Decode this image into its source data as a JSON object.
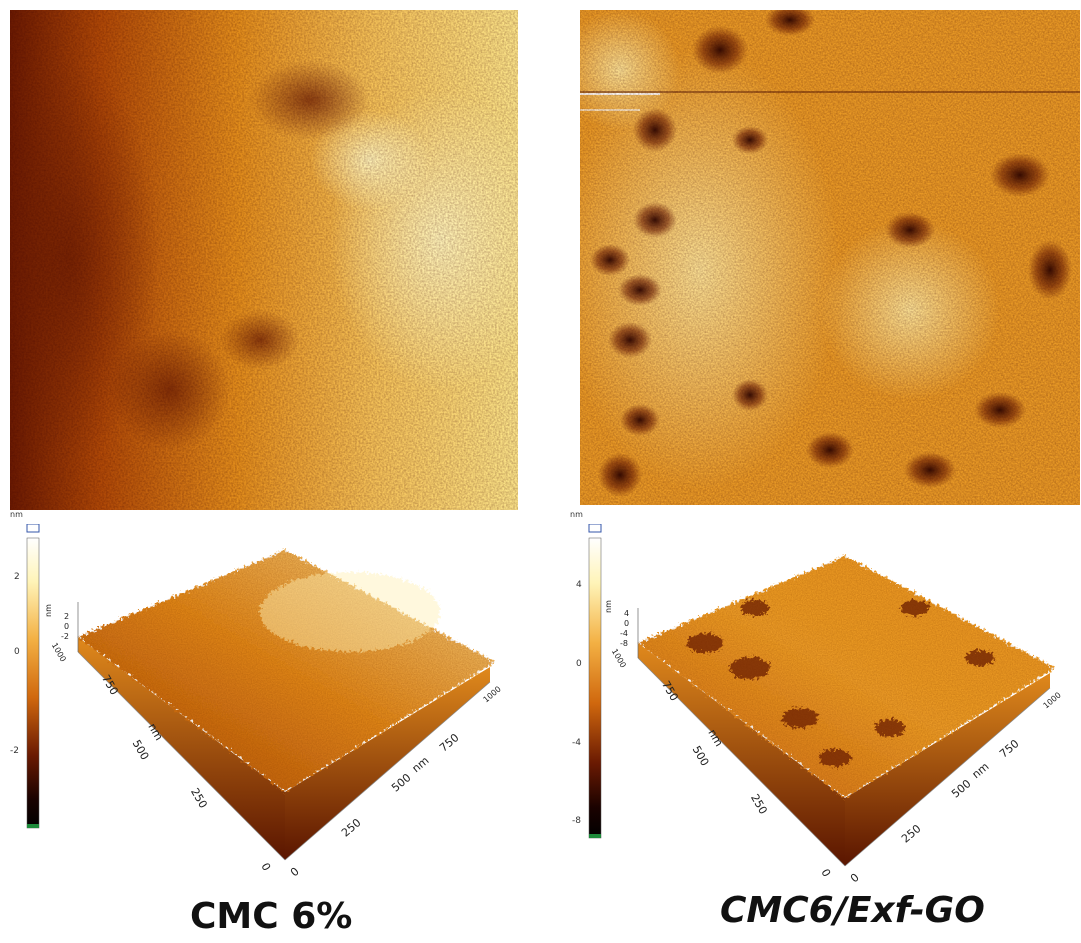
{
  "panels": [
    {
      "id": "left",
      "caption": "CMC 6%",
      "caption_italic": false,
      "colorbar": {
        "unit": "nm",
        "ticks": [
          "2",
          "0",
          "-2"
        ]
      },
      "surface3d": {
        "z_unit": "nm",
        "z_ticks": [
          "2",
          "0",
          "-2"
        ],
        "y_top_tick": "1000",
        "y_axis_unit": "nm",
        "y_ticks": [
          "750",
          "500",
          "250",
          "0"
        ],
        "x_axis_unit": "nm",
        "x_ticks": [
          "0",
          "250",
          "500",
          "750",
          "1000"
        ]
      }
    },
    {
      "id": "right",
      "caption": "CMC6/Exf-GO",
      "caption_italic": true,
      "colorbar": {
        "unit": "nm",
        "ticks": [
          "4",
          "0",
          "-4",
          "-8"
        ]
      },
      "surface3d": {
        "z_unit": "nm",
        "z_ticks": [
          "4",
          "0",
          "-4",
          "-8"
        ],
        "y_top_tick": "1000",
        "y_axis_unit": "nm",
        "y_ticks": [
          "750",
          "500",
          "250",
          "0"
        ],
        "x_axis_unit": "nm",
        "x_ticks": [
          "0",
          "250",
          "500",
          "750",
          "1000"
        ]
      }
    }
  ],
  "colors": {
    "afm_dark": "#3a0a00",
    "afm_mid": "#d9780f",
    "afm_light": "#fff1b0"
  }
}
